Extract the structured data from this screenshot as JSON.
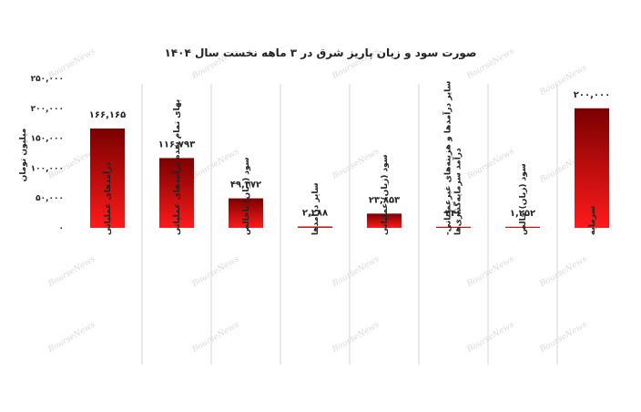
{
  "watermark": "BourseNews",
  "chart_data": {
    "type": "bar",
    "title": "صورت سود و زیان پاریز شرق در ۳ ماهه نخست سال ۱۴۰۴",
    "xlabel": "",
    "ylabel": "میلیون تومان",
    "ylim": [
      0,
      250000
    ],
    "yticks": [
      0,
      50000,
      100000,
      150000,
      200000,
      250000
    ],
    "ytick_labels": [
      "۰",
      "۵۰,۰۰۰",
      "۱۰۰,۰۰۰",
      "۱۵۰,۰۰۰",
      "۲۰۰,۰۰۰",
      "۲۵۰,۰۰۰"
    ],
    "grid": "vertical separators",
    "categories": [
      "درآمدهای عملیاتی",
      "بهای تمام شده درآمدهای عملیاتی",
      "سود (زیان) ناخالص",
      "سایر درآمدها",
      "سود (زیان) عملیاتی",
      "سایر درآمدها و هزینه‌های غیرعملیاتی- درآمد سرمایه‌گذاری‌ها",
      "سود (زیان) خالص",
      "سرمایه"
    ],
    "values": [
      166165,
      116793,
      49372,
      2288,
      23853,
      346,
      1252,
      200000
    ],
    "value_labels": [
      "۱۶۶,۱۶۵",
      "۱۱۶,۷۹۳",
      "۴۹,۳۷۲",
      "۲,۲۸۸",
      "۲۳,۸۵۳",
      "۳۴۶",
      "۱,۲۵۲",
      "۲۰۰,۰۰۰"
    ],
    "colors": {
      "bar_top": "#7a0000",
      "bar_bottom": "#ff1a1a",
      "separator": "#d6d6d6"
    }
  }
}
